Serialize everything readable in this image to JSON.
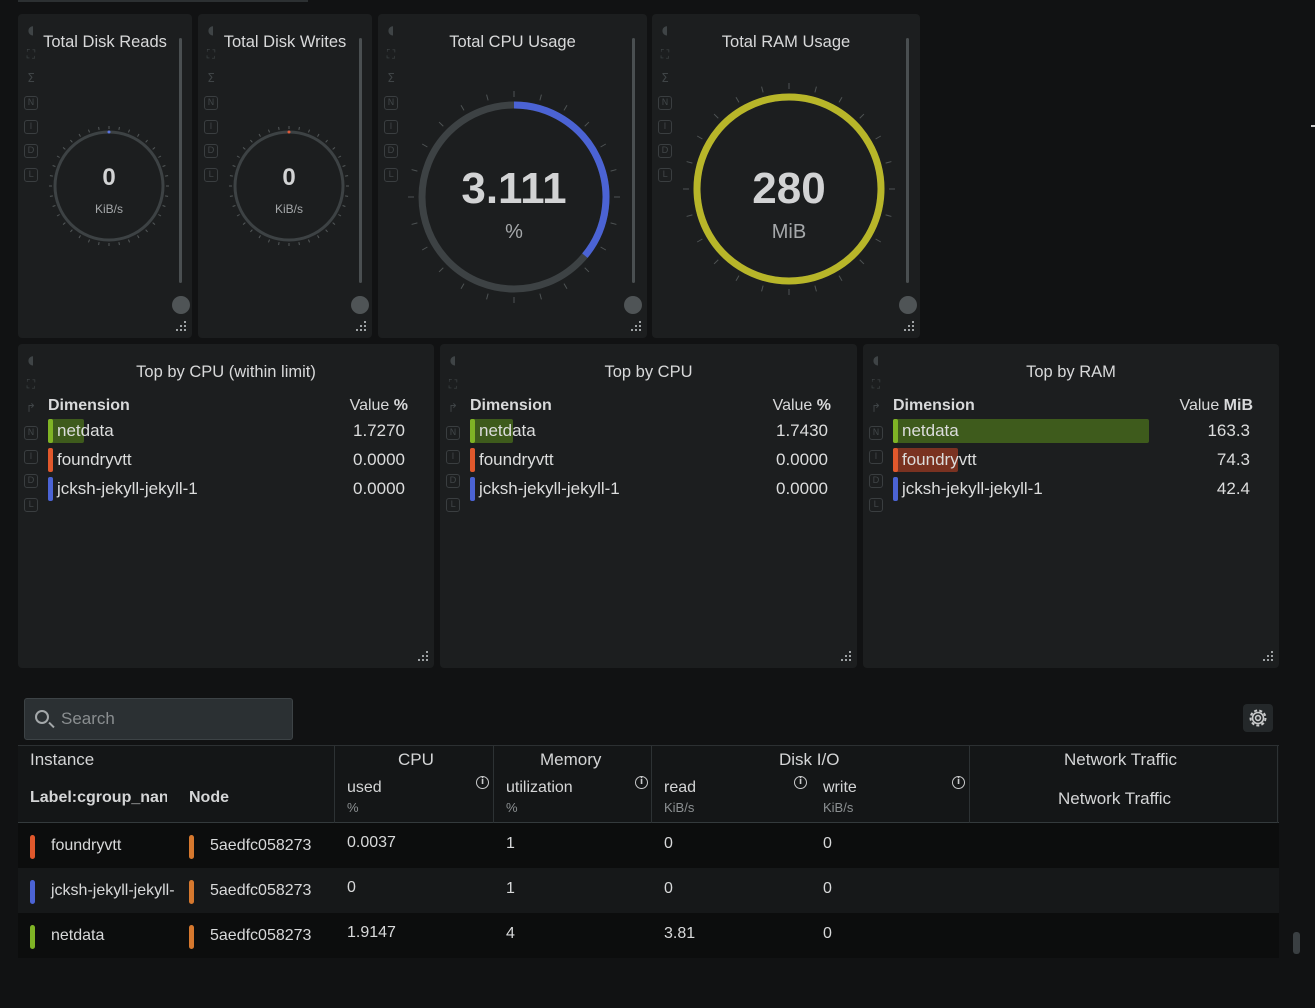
{
  "gauges": [
    {
      "title": "Total Disk Reads",
      "value": "0",
      "unit": "KiB/s",
      "fraction": 0,
      "color": "#5a73e0"
    },
    {
      "title": "Total Disk Writes",
      "value": "0",
      "unit": "KiB/s",
      "fraction": 0,
      "color": "#e05a3a"
    },
    {
      "title": "Total CPU Usage",
      "value": "3.111",
      "unit": "%",
      "fraction": 0.36,
      "color": "#4b63d4"
    },
    {
      "title": "Total RAM Usage",
      "value": "280",
      "unit": "MiB",
      "fraction": 1.0,
      "color": "#b8b629"
    }
  ],
  "side_icons": [
    "N",
    "I",
    "D",
    "L"
  ],
  "top_panels": [
    {
      "title": "Top by CPU (within limit)",
      "col_dimension": "Dimension",
      "col_value": "Value",
      "col_unit": "%",
      "rows": [
        {
          "name": "netdata",
          "value": "1.7270",
          "fraction": 0.1,
          "color": "#7fb325",
          "bar_color": "#3e5b1c"
        },
        {
          "name": "foundryvtt",
          "value": "0.0000",
          "fraction": 0,
          "color": "#e0582c",
          "bar_color": "#7a3221"
        },
        {
          "name": "jcksh-jekyll-jekyll-1",
          "value": "0.0000",
          "fraction": 0,
          "color": "#4b63d4",
          "bar_color": "#2a3566"
        }
      ]
    },
    {
      "title": "Top by CPU",
      "col_dimension": "Dimension",
      "col_value": "Value",
      "col_unit": "%",
      "rows": [
        {
          "name": "netdata",
          "value": "1.7430",
          "fraction": 0.12,
          "color": "#7fb325",
          "bar_color": "#3e5b1c"
        },
        {
          "name": "foundryvtt",
          "value": "0.0000",
          "fraction": 0,
          "color": "#e0582c",
          "bar_color": "#7a3221"
        },
        {
          "name": "jcksh-jekyll-jekyll-1",
          "value": "0.0000",
          "fraction": 0,
          "color": "#4b63d4",
          "bar_color": "#2a3566"
        }
      ]
    },
    {
      "title": "Top by RAM",
      "col_dimension": "Dimension",
      "col_value": "Value",
      "col_unit": "MiB",
      "rows": [
        {
          "name": "netdata",
          "value": "163.3",
          "fraction": 0.71,
          "color": "#7fb325",
          "bar_color": "#3e5b1c"
        },
        {
          "name": "foundryvtt",
          "value": "74.3",
          "fraction": 0.18,
          "color": "#e0582c",
          "bar_color": "#7a3221"
        },
        {
          "name": "jcksh-jekyll-jekyll-1",
          "value": "42.4",
          "fraction": 0,
          "color": "#4b63d4",
          "bar_color": "#2a3566"
        }
      ]
    }
  ],
  "search": {
    "placeholder": "Search",
    "value": ""
  },
  "table": {
    "groups": {
      "instance": "Instance",
      "cpu": "CPU",
      "memory": "Memory",
      "disk": "Disk I/O",
      "network": "Network Traffic"
    },
    "columns": {
      "label": "Label:cgroup_nan",
      "node": "Node",
      "cpu_used": "used",
      "cpu_used_unit": "%",
      "mem_util": "utilization",
      "mem_util_unit": "%",
      "disk_read": "read",
      "disk_read_unit": "KiB/s",
      "disk_write": "write",
      "disk_write_unit": "KiB/s",
      "network": "Network Traffic"
    },
    "rows": [
      {
        "name": "foundryvtt",
        "color": "#e0582c",
        "node": "5aedfc058273",
        "node_color": "#d6782e",
        "cpu": "0.0037",
        "mem": "1",
        "read": "0",
        "write": "0"
      },
      {
        "name": "jcksh-jekyll-jekyll-",
        "color": "#4b63d4",
        "node": "5aedfc058273",
        "node_color": "#d6782e",
        "cpu": "0",
        "mem": "1",
        "read": "0",
        "write": "0"
      },
      {
        "name": "netdata",
        "color": "#7fb325",
        "node": "5aedfc058273",
        "node_color": "#d6782e",
        "cpu": "1.9147",
        "mem": "4",
        "read": "3.81",
        "write": "0"
      }
    ]
  }
}
